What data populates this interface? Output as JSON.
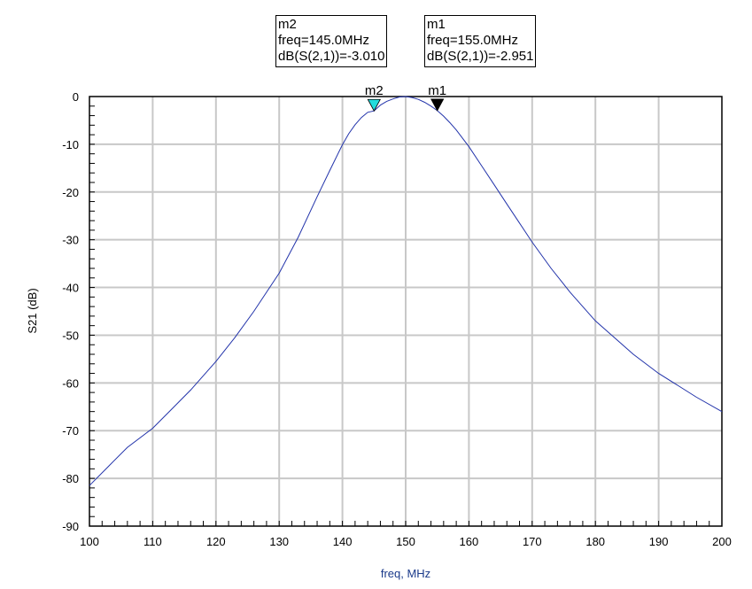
{
  "chart_data": {
    "type": "line",
    "xlabel": "freq, MHz",
    "ylabel": "S21 (dB)",
    "xlim": [
      100,
      200
    ],
    "ylim": [
      -90,
      0
    ],
    "x_ticks": [
      "100",
      "110",
      "120",
      "130",
      "140",
      "150",
      "160",
      "170",
      "180",
      "190",
      "200"
    ],
    "y_ticks": [
      "0",
      "-10",
      "-20",
      "-30",
      "-40",
      "-50",
      "-60",
      "-70",
      "-80",
      "-90"
    ],
    "grid": true,
    "series": [
      {
        "color": "#2233aa",
        "x": [
          100,
          103,
          106,
          110,
          113,
          116,
          120,
          123,
          126,
          130,
          133,
          136,
          138,
          140,
          141,
          142,
          143,
          144,
          145,
          146,
          147,
          148,
          149,
          150,
          151,
          152,
          153,
          154,
          155,
          156,
          157,
          158,
          160,
          162,
          164,
          166,
          168,
          170,
          173,
          176,
          180,
          183,
          186,
          190,
          193,
          196,
          200
        ],
        "y": [
          -81.5,
          -77.5,
          -73.5,
          -69.5,
          -65.5,
          -61.5,
          -55.5,
          -50.5,
          -45,
          -37,
          -29.5,
          -21,
          -15.5,
          -10.1,
          -7.8,
          -5.9,
          -4.4,
          -3.3,
          -3.0,
          -1.8,
          -1.0,
          -0.5,
          -0.1,
          0,
          -0.2,
          -0.6,
          -1.2,
          -2.0,
          -2.95,
          -4.1,
          -5.5,
          -7.0,
          -10.5,
          -14.5,
          -18.5,
          -22.5,
          -26.5,
          -30.5,
          -36,
          -41,
          -47,
          -50.5,
          -54,
          -58,
          -60.5,
          -63,
          -66
        ]
      }
    ],
    "markers": [
      {
        "name": "m2",
        "x": 145.0,
        "y": -3.01,
        "color": "#22dddd",
        "lines": [
          "m2",
          "freq=145.0MHz",
          "dB(S(2,1))=-3.010"
        ]
      },
      {
        "name": "m1",
        "x": 155.0,
        "y": -2.951,
        "color": "#000000",
        "lines": [
          "m1",
          "freq=155.0MHz",
          "dB(S(2,1))=-2.951"
        ]
      }
    ]
  }
}
